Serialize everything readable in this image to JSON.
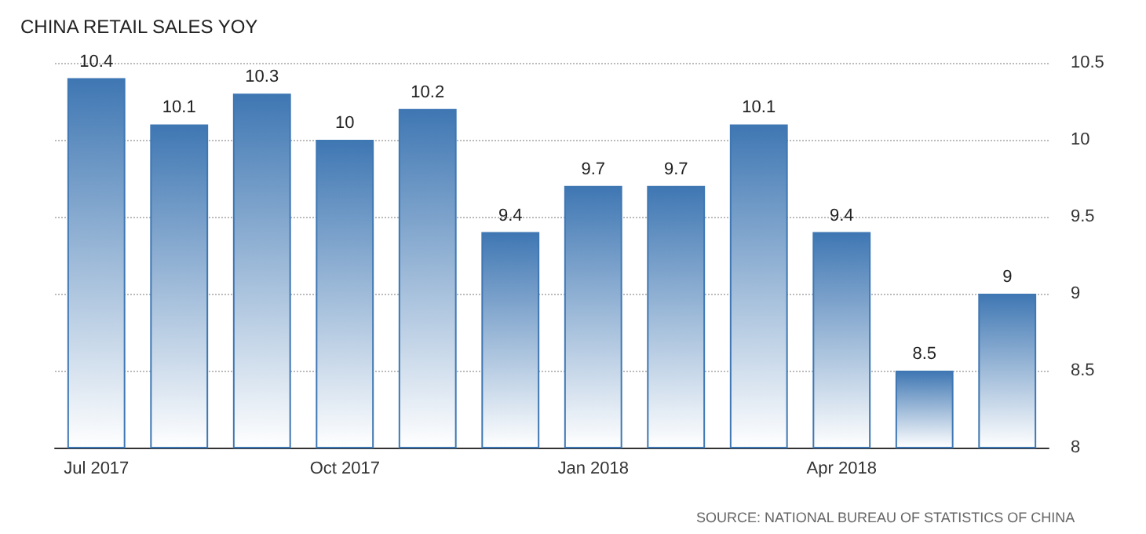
{
  "chart_data": {
    "type": "bar",
    "title": "CHINA RETAIL SALES YOY",
    "categories": [
      "Jul 2017",
      null,
      null,
      "Oct 2017",
      null,
      null,
      "Jan 2018",
      null,
      null,
      "Apr 2018",
      null,
      null
    ],
    "values": [
      10.4,
      10.1,
      10.3,
      10,
      10.2,
      9.4,
      9.7,
      9.7,
      10.1,
      9.4,
      8.5,
      9
    ],
    "color": "#3f77b3",
    "ylim": [
      8,
      10.5
    ],
    "yticks": [
      8,
      8.5,
      9,
      9.5,
      10,
      10.5
    ],
    "grid": "y",
    "data_labels": true,
    "annotations": [
      "SOURCE: NATIONAL BUREAU OF STATISTICS OF CHINA"
    ]
  }
}
